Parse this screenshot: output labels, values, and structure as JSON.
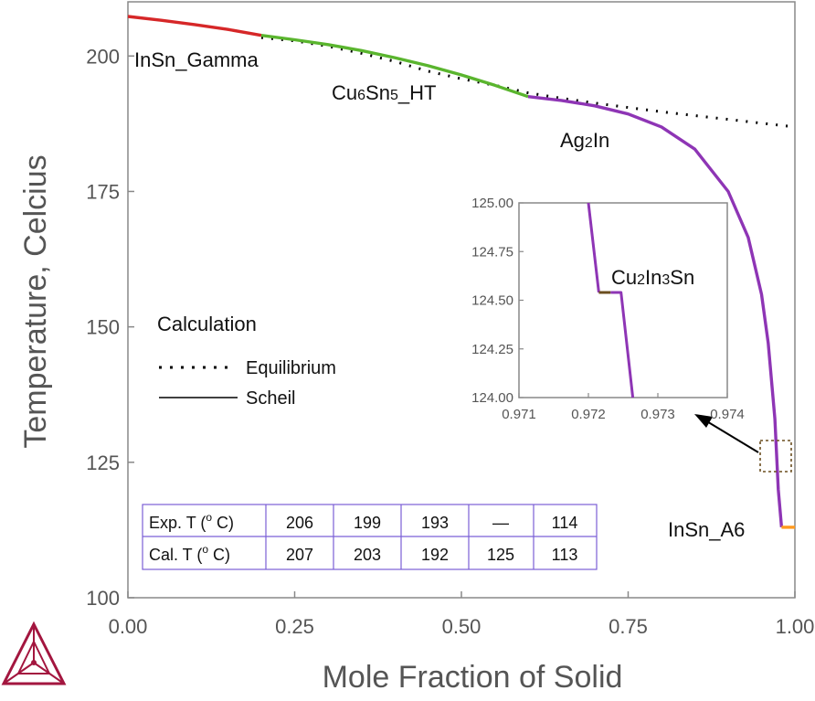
{
  "chart_data": {
    "type": "line",
    "xlabel": "Mole Fraction of Solid",
    "ylabel": "Temperature, Celcius",
    "xlim": [
      0,
      1
    ],
    "ylim": [
      100,
      210
    ],
    "x_ticks": [
      "0.00",
      "0.25",
      "0.50",
      "0.75",
      "1.00"
    ],
    "y_ticks": [
      "100",
      "125",
      "150",
      "175",
      "200"
    ],
    "grid": false,
    "legend": {
      "title": "Calculation",
      "placement": "left-middle",
      "entries": [
        {
          "name": "Equilibrium",
          "style": "dotted"
        },
        {
          "name": "Scheil",
          "style": "solid"
        }
      ]
    },
    "series": [
      {
        "name": "Equilibrium",
        "style": "dotted",
        "color": "#000000",
        "points": [
          [
            0.2,
            203.4
          ],
          [
            0.25,
            202.8
          ],
          [
            0.3,
            201.8
          ],
          [
            0.35,
            200.5
          ],
          [
            0.4,
            199.0
          ],
          [
            0.45,
            197.2
          ],
          [
            0.5,
            195.8
          ],
          [
            0.55,
            194.6
          ],
          [
            0.6,
            193.2
          ],
          [
            0.65,
            192.2
          ],
          [
            0.7,
            191.3
          ],
          [
            0.75,
            190.5
          ],
          [
            0.8,
            189.7
          ],
          [
            0.85,
            189.0
          ],
          [
            0.9,
            188.3
          ],
          [
            0.95,
            187.6
          ],
          [
            1.0,
            186.9
          ]
        ]
      },
      {
        "name": "Scheil",
        "style": "solid",
        "segments": [
          {
            "phase": "InSn_Gamma",
            "color": "#d62728",
            "points": [
              [
                0.0,
                207.3
              ],
              [
                0.05,
                206.6
              ],
              [
                0.1,
                205.8
              ],
              [
                0.15,
                204.9
              ],
              [
                0.2,
                203.8
              ]
            ]
          },
          {
            "phase": "Cu6Sn5_HT",
            "color": "#5ab52e",
            "points": [
              [
                0.2,
                203.8
              ],
              [
                0.25,
                203.0
              ],
              [
                0.3,
                202.1
              ],
              [
                0.35,
                201.0
              ],
              [
                0.4,
                199.7
              ],
              [
                0.45,
                198.2
              ],
              [
                0.5,
                196.5
              ],
              [
                0.55,
                194.6
              ],
              [
                0.6,
                192.5
              ]
            ]
          },
          {
            "phase": "Ag2In",
            "color": "#8e35b5",
            "points": [
              [
                0.6,
                192.5
              ],
              [
                0.65,
                191.8
              ],
              [
                0.7,
                190.8
              ],
              [
                0.75,
                189.3
              ],
              [
                0.8,
                186.9
              ],
              [
                0.85,
                182.8
              ],
              [
                0.9,
                175.0
              ],
              [
                0.93,
                166.5
              ],
              [
                0.95,
                156.0
              ],
              [
                0.96,
                147.0
              ],
              [
                0.97,
                133.0
              ],
              [
                0.975,
                120.0
              ],
              [
                0.98,
                113.0
              ]
            ]
          },
          {
            "phase": "InSn_A6",
            "color": "#ff9a1f",
            "points": [
              [
                0.98,
                113.0
              ],
              [
                1.0,
                113.0
              ]
            ]
          }
        ]
      }
    ],
    "phase_labels": [
      "InSn_Gamma",
      "Cu6Sn5_HT",
      "Ag2In",
      "InSn_A6"
    ],
    "inset": {
      "phase_label": "Cu2In3Sn",
      "xlim": [
        0.971,
        0.974
      ],
      "ylim": [
        124.0,
        125.0
      ],
      "x_ticks": [
        "0.971",
        "0.972",
        "0.973",
        "0.974"
      ],
      "y_ticks": [
        "124.00",
        "124.25",
        "124.50",
        "124.75",
        "125.00"
      ],
      "segments": [
        {
          "phase": "Ag2In",
          "color": "#8e35b5",
          "points": [
            [
              0.972,
              125.0
            ],
            [
              0.97215,
              124.54
            ]
          ]
        },
        {
          "phase": "Cu2In3Sn",
          "color": "#6b4e1f",
          "points": [
            [
              0.97215,
              124.54
            ],
            [
              0.97232,
              124.54
            ]
          ]
        },
        {
          "phase": "Ag2In",
          "color": "#8e35b5",
          "points": [
            [
              0.97232,
              124.54
            ],
            [
              0.97247,
              124.54
            ],
            [
              0.97264,
              124.0
            ]
          ]
        }
      ]
    },
    "table": {
      "rows": [
        {
          "label": "Exp. T (o C)",
          "values": [
            "206",
            "199",
            "193",
            "—",
            "114"
          ]
        },
        {
          "label": "Cal. T (o C)",
          "values": [
            "207",
            "203",
            "192",
            "125",
            "113"
          ]
        }
      ]
    }
  }
}
